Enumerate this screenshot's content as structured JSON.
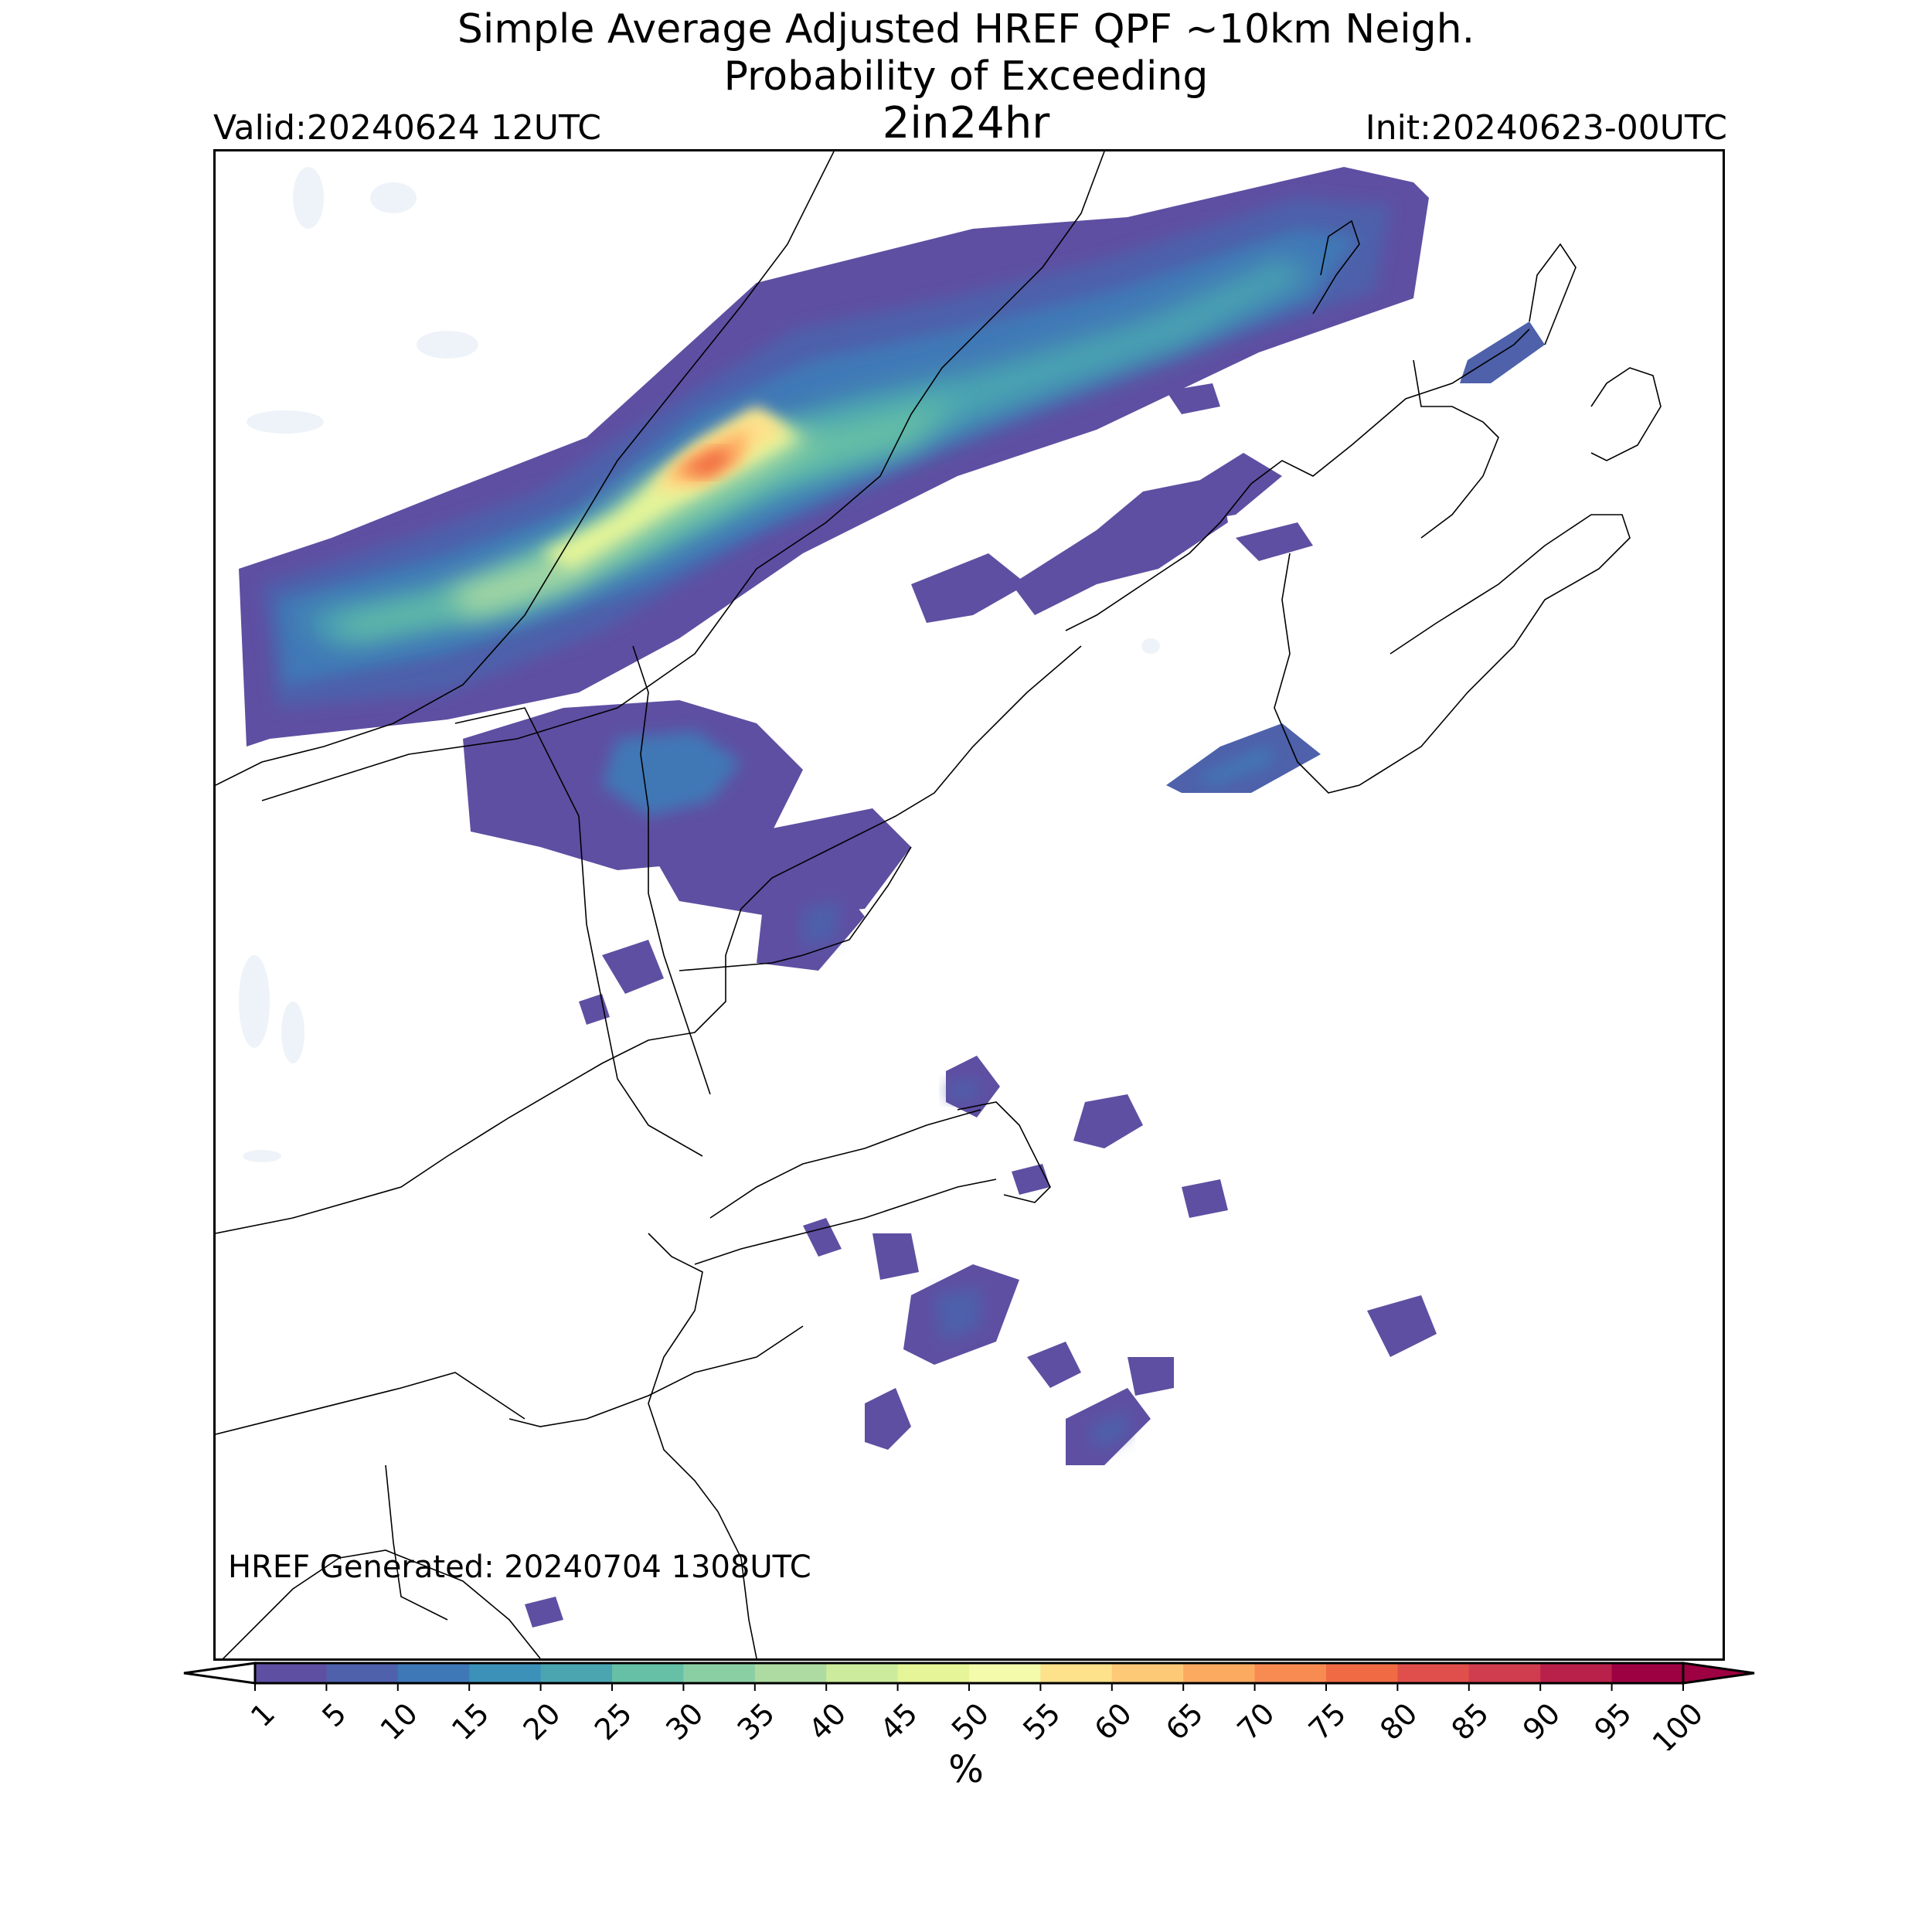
{
  "title": {
    "line1": "Simple Average Adjusted HREF QPF ~10km Neigh.",
    "line2": "Probability of Exceeding",
    "line3": "2in24hr"
  },
  "valid": "Valid:20240624 12UTC",
  "init": "Init:20240623-00UTC",
  "generated": "HREF Generated: 20240704 1308UTC",
  "colorbar": {
    "label": "%",
    "ticks": [
      "1",
      "5",
      "10",
      "15",
      "20",
      "25",
      "30",
      "35",
      "40",
      "45",
      "50",
      "55",
      "60",
      "65",
      "70",
      "75",
      "80",
      "85",
      "90",
      "95",
      "100"
    ],
    "colors": [
      "#5e4fa2",
      "#4e61aa",
      "#3f78b6",
      "#3c91b9",
      "#4aa5b1",
      "#66c0a5",
      "#8acfa4",
      "#aedba2",
      "#cceb9d",
      "#e5f598",
      "#f4fbaa",
      "#fee18b",
      "#fdc976",
      "#fdaa61",
      "#f88b52",
      "#f06b43",
      "#e04f4b",
      "#cf3d4e",
      "#b9214a",
      "#9e0142"
    ],
    "under_color": "#ffffff",
    "over_color": "#9e0142"
  }
}
